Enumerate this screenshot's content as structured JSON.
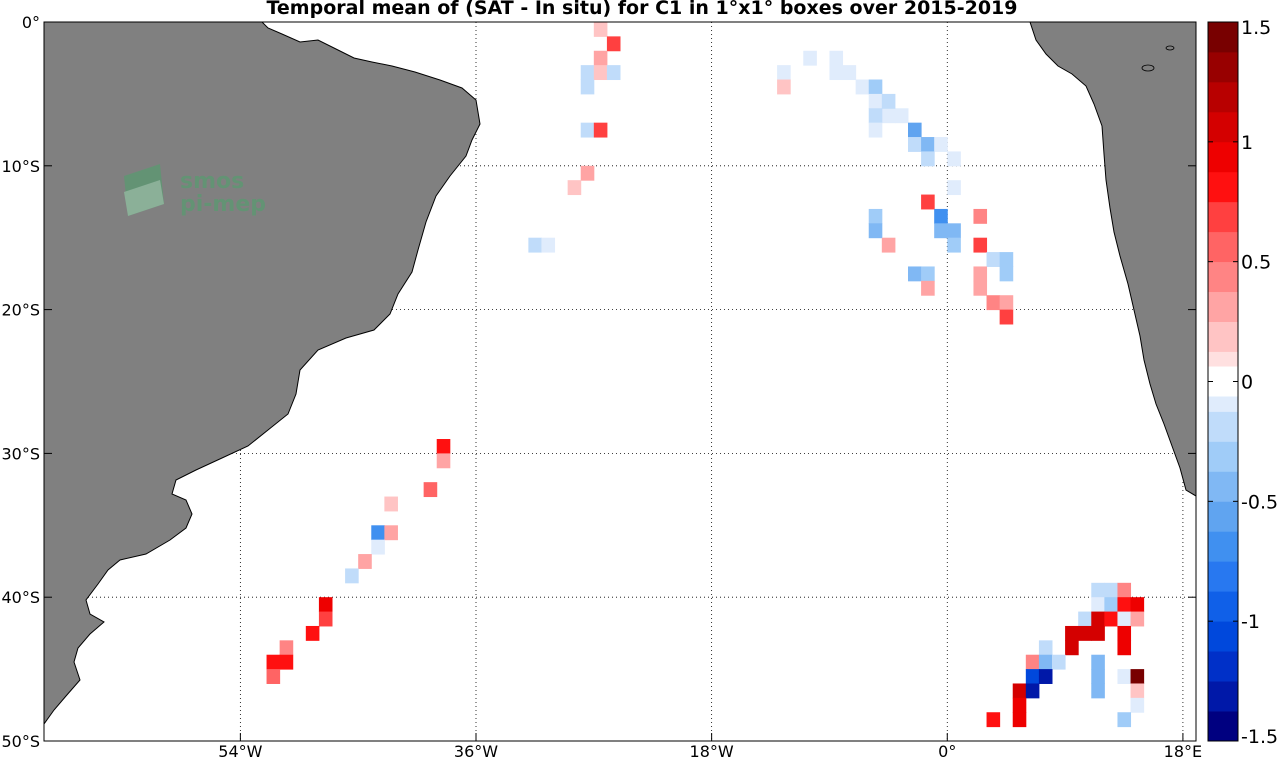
{
  "chart_data": {
    "type": "heatmap",
    "title": "Temporal mean of (SAT - In situ) for C1 in 1°x1° boxes over 2015-2019",
    "xlim": [
      -69,
      19
    ],
    "ylim": [
      -50,
      0
    ],
    "xticks": [
      {
        "value": -54,
        "label": "54°W"
      },
      {
        "value": -36,
        "label": "36°W"
      },
      {
        "value": -18,
        "label": "18°W"
      },
      {
        "value": 0,
        "label": "0°"
      },
      {
        "value": 18,
        "label": "18°E"
      }
    ],
    "yticks": [
      {
        "value": 0,
        "label": "0°"
      },
      {
        "value": -10,
        "label": "10°S"
      },
      {
        "value": -20,
        "label": "20°S"
      },
      {
        "value": -30,
        "label": "30°S"
      },
      {
        "value": -40,
        "label": "40°S"
      },
      {
        "value": -50,
        "label": "50°S"
      }
    ],
    "colorbar": {
      "range": [
        -1.5,
        1.5
      ],
      "ticks": [
        {
          "value": 1.5,
          "label": "1.5"
        },
        {
          "value": 1,
          "label": "1"
        },
        {
          "value": 0.5,
          "label": "0.5"
        },
        {
          "value": 0,
          "label": "0"
        },
        {
          "value": -0.5,
          "label": "-0.5"
        },
        {
          "value": -1,
          "label": "-1"
        },
        {
          "value": -1.5,
          "label": "-1.5"
        }
      ]
    },
    "land_color": "#808080",
    "cells": [
      {
        "lon": -26.5,
        "lat": -0.5,
        "value": 0.15
      },
      {
        "lon": -25.5,
        "lat": -1.5,
        "value": 0.65
      },
      {
        "lon": -26.5,
        "lat": -2.5,
        "value": 0.35
      },
      {
        "lon": -27.5,
        "lat": -3.5,
        "value": -0.25
      },
      {
        "lon": -26.5,
        "lat": -3.5,
        "value": 0.15
      },
      {
        "lon": -25.5,
        "lat": -3.5,
        "value": -0.15
      },
      {
        "lon": -27.5,
        "lat": -4.5,
        "value": -0.15
      },
      {
        "lon": -27.5,
        "lat": -7.5,
        "value": -0.15
      },
      {
        "lon": -26.5,
        "lat": -7.5,
        "value": 0.7
      },
      {
        "lon": -27.5,
        "lat": -10.5,
        "value": 0.25
      },
      {
        "lon": -28.5,
        "lat": -11.5,
        "value": 0.15
      },
      {
        "lon": -31.5,
        "lat": -15.5,
        "value": -0.2
      },
      {
        "lon": -30.5,
        "lat": -15.5,
        "value": -0.1
      },
      {
        "lon": -10.5,
        "lat": -2.5,
        "value": -0.1
      },
      {
        "lon": -8.5,
        "lat": -3.5,
        "value": -0.1
      },
      {
        "lon": -8.5,
        "lat": -2.5,
        "value": -0.1
      },
      {
        "lon": -7.5,
        "lat": -3.5,
        "value": -0.1
      },
      {
        "lon": -12.5,
        "lat": -3.5,
        "value": -0.1
      },
      {
        "lon": -12.5,
        "lat": -4.5,
        "value": 0.15
      },
      {
        "lon": -6.5,
        "lat": -4.5,
        "value": -0.1
      },
      {
        "lon": -5.5,
        "lat": -4.5,
        "value": -0.35
      },
      {
        "lon": -5.5,
        "lat": -5.5,
        "value": -0.1
      },
      {
        "lon": -4.5,
        "lat": -6.5,
        "value": -0.1
      },
      {
        "lon": -3.5,
        "lat": -6.5,
        "value": -0.1
      },
      {
        "lon": -4.5,
        "lat": -5.5,
        "value": -0.15
      },
      {
        "lon": -5.5,
        "lat": -6.5,
        "value": -0.15
      },
      {
        "lon": -5.5,
        "lat": -7.5,
        "value": -0.1
      },
      {
        "lon": -2.5,
        "lat": -7.5,
        "value": -0.55
      },
      {
        "lon": -2.5,
        "lat": -8.5,
        "value": -0.25
      },
      {
        "lon": -1.5,
        "lat": -8.5,
        "value": -0.4
      },
      {
        "lon": -0.5,
        "lat": -8.5,
        "value": -0.1
      },
      {
        "lon": -1.5,
        "lat": -9.5,
        "value": -0.15
      },
      {
        "lon": 0.5,
        "lat": -9.5,
        "value": -0.1
      },
      {
        "lon": 0.5,
        "lat": -11.5,
        "value": -0.1
      },
      {
        "lon": -1.5,
        "lat": -12.5,
        "value": 0.7
      },
      {
        "lon": -0.5,
        "lat": -13.5,
        "value": -0.65
      },
      {
        "lon": -0.5,
        "lat": -14.5,
        "value": -0.45
      },
      {
        "lon": 0.5,
        "lat": -14.5,
        "value": -0.45
      },
      {
        "lon": 0.5,
        "lat": -15.5,
        "value": -0.35
      },
      {
        "lon": -5.5,
        "lat": -13.5,
        "value": -0.35
      },
      {
        "lon": -5.5,
        "lat": -14.5,
        "value": -0.45
      },
      {
        "lon": -4.5,
        "lat": -15.5,
        "value": 0.35
      },
      {
        "lon": 2.5,
        "lat": -13.5,
        "value": 0.4
      },
      {
        "lon": 2.5,
        "lat": -15.5,
        "value": 0.7
      },
      {
        "lon": 3.5,
        "lat": -16.5,
        "value": -0.15
      },
      {
        "lon": 4.5,
        "lat": -16.5,
        "value": -0.35
      },
      {
        "lon": 4.5,
        "lat": -17.5,
        "value": -0.35
      },
      {
        "lon": 2.5,
        "lat": -17.5,
        "value": 0.35
      },
      {
        "lon": 2.5,
        "lat": -18.5,
        "value": 0.3
      },
      {
        "lon": 3.5,
        "lat": -19.5,
        "value": 0.45
      },
      {
        "lon": 4.5,
        "lat": -19.5,
        "value": 0.3
      },
      {
        "lon": 4.5,
        "lat": -20.5,
        "value": 0.65
      },
      {
        "lon": -2.5,
        "lat": -17.5,
        "value": -0.4
      },
      {
        "lon": -1.5,
        "lat": -17.5,
        "value": -0.3
      },
      {
        "lon": -1.5,
        "lat": -18.5,
        "value": 0.35
      },
      {
        "lon": -38.5,
        "lat": -29.5,
        "value": 0.75
      },
      {
        "lon": -38.5,
        "lat": -30.5,
        "value": 0.35
      },
      {
        "lon": -39.5,
        "lat": -32.5,
        "value": 0.5
      },
      {
        "lon": -42.5,
        "lat": -33.5,
        "value": 0.2
      },
      {
        "lon": -43.5,
        "lat": -35.5,
        "value": -0.7
      },
      {
        "lon": -42.5,
        "lat": -35.5,
        "value": 0.25
      },
      {
        "lon": -43.5,
        "lat": -36.5,
        "value": -0.1
      },
      {
        "lon": -44.5,
        "lat": -37.5,
        "value": 0.35
      },
      {
        "lon": -45.5,
        "lat": -38.5,
        "value": -0.25
      },
      {
        "lon": -47.5,
        "lat": -40.5,
        "value": 0.95
      },
      {
        "lon": -47.5,
        "lat": -41.5,
        "value": 0.7
      },
      {
        "lon": -48.5,
        "lat": -42.5,
        "value": 0.75
      },
      {
        "lon": -50.5,
        "lat": -43.5,
        "value": 0.45
      },
      {
        "lon": -51.5,
        "lat": -44.5,
        "value": 0.75
      },
      {
        "lon": -50.5,
        "lat": -44.5,
        "value": 0.8
      },
      {
        "lon": -51.5,
        "lat": -45.5,
        "value": 0.55
      },
      {
        "lon": 11.5,
        "lat": -39.5,
        "value": -0.2
      },
      {
        "lon": 12.5,
        "lat": -39.5,
        "value": -0.2
      },
      {
        "lon": 13.5,
        "lat": -39.5,
        "value": 0.4
      },
      {
        "lon": 11.5,
        "lat": -40.5,
        "value": -0.1
      },
      {
        "lon": 12.5,
        "lat": -40.5,
        "value": -0.3
      },
      {
        "lon": 13.5,
        "lat": -40.5,
        "value": 0.85
      },
      {
        "lon": 14.5,
        "lat": -40.5,
        "value": 0.95
      },
      {
        "lon": 10.5,
        "lat": -41.5,
        "value": -0.15
      },
      {
        "lon": 11.5,
        "lat": -41.5,
        "value": 1.05
      },
      {
        "lon": 12.5,
        "lat": -41.5,
        "value": 0.85
      },
      {
        "lon": 13.5,
        "lat": -41.5,
        "value": -0.1
      },
      {
        "lon": 14.5,
        "lat": -41.5,
        "value": 0.3
      },
      {
        "lon": 9.5,
        "lat": -42.5,
        "value": 1.05
      },
      {
        "lon": 10.5,
        "lat": -42.5,
        "value": 1.1
      },
      {
        "lon": 11.5,
        "lat": -42.5,
        "value": 1.0
      },
      {
        "lon": 13.5,
        "lat": -42.5,
        "value": 0.9
      },
      {
        "lon": 9.5,
        "lat": -43.5,
        "value": 1.1
      },
      {
        "lon": 13.5,
        "lat": -43.5,
        "value": 0.95
      },
      {
        "lon": 7.5,
        "lat": -43.5,
        "value": -0.15
      },
      {
        "lon": 6.5,
        "lat": -44.5,
        "value": 0.4
      },
      {
        "lon": 7.5,
        "lat": -44.5,
        "value": -0.4
      },
      {
        "lon": 8.5,
        "lat": -44.5,
        "value": -0.15
      },
      {
        "lon": 11.5,
        "lat": -44.5,
        "value": -0.4
      },
      {
        "lon": 6.5,
        "lat": -45.5,
        "value": -1.05
      },
      {
        "lon": 7.5,
        "lat": -45.5,
        "value": -1.35
      },
      {
        "lon": 11.5,
        "lat": -45.5,
        "value": -0.4
      },
      {
        "lon": 13.5,
        "lat": -45.5,
        "value": -0.1
      },
      {
        "lon": 14.5,
        "lat": -45.5,
        "value": 1.5
      },
      {
        "lon": 5.5,
        "lat": -46.5,
        "value": 1.0
      },
      {
        "lon": 6.5,
        "lat": -46.5,
        "value": -1.3
      },
      {
        "lon": 11.5,
        "lat": -46.5,
        "value": -0.4
      },
      {
        "lon": 14.5,
        "lat": -46.5,
        "value": 0.15
      },
      {
        "lon": 5.5,
        "lat": -47.5,
        "value": 0.95
      },
      {
        "lon": 14.5,
        "lat": -47.5,
        "value": -0.1
      },
      {
        "lon": 3.5,
        "lat": -48.5,
        "value": 0.75
      },
      {
        "lon": 5.5,
        "lat": -48.5,
        "value": 0.95
      },
      {
        "lon": 13.5,
        "lat": -48.5,
        "value": -0.3
      }
    ]
  },
  "logo": {
    "line1": "smos",
    "line2": "pi-mep"
  },
  "colors": {
    "land": "#808080",
    "grid": "#000000",
    "logo_green": "#5a9a70"
  }
}
